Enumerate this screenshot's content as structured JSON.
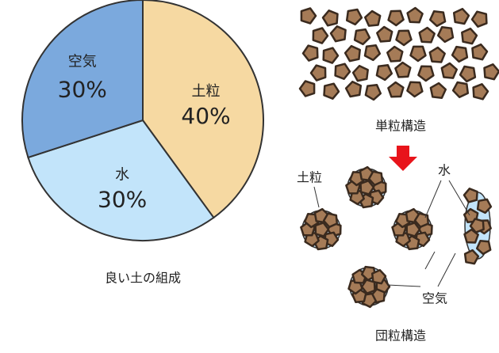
{
  "chart_data": {
    "type": "pie",
    "title": "良い土の組成",
    "categories": [
      "土粒",
      "水",
      "空気"
    ],
    "values": [
      40,
      30,
      30
    ],
    "value_labels": [
      "40%",
      "30%",
      "30%"
    ],
    "colors": [
      "#f6d9a2",
      "#c2e4fa",
      "#7ba9dd"
    ]
  },
  "diagram": {
    "single_grain_label": "単粒構造",
    "aggregate_label": "団粒構造",
    "labels": [
      "土粒",
      "水",
      "空気"
    ]
  }
}
